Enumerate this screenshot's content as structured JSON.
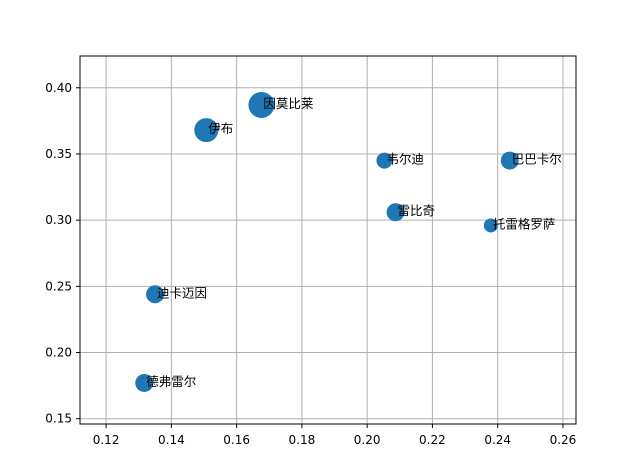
{
  "chart_data": {
    "type": "scatter",
    "title": "",
    "xlabel": "",
    "ylabel": "",
    "xlim": [
      0.112,
      0.264
    ],
    "ylim": [
      0.146,
      0.424
    ],
    "grid": true,
    "marker_color": "#1f77b4",
    "x_ticks": [
      "0.12",
      "0.14",
      "0.16",
      "0.18",
      "0.20",
      "0.22",
      "0.24",
      "0.26"
    ],
    "y_ticks": [
      "0.15",
      "0.20",
      "0.25",
      "0.30",
      "0.35",
      "0.40"
    ],
    "points": [
      {
        "label": "因莫比莱",
        "x": 0.1676,
        "y": 0.387,
        "size": 13
      },
      {
        "label": "伊布",
        "x": 0.1507,
        "y": 0.368,
        "size": 12
      },
      {
        "label": "韦尔迪",
        "x": 0.2053,
        "y": 0.345,
        "size": 8
      },
      {
        "label": "巴巴卡尔",
        "x": 0.2437,
        "y": 0.345,
        "size": 9
      },
      {
        "label": "雷比奇",
        "x": 0.2087,
        "y": 0.306,
        "size": 9
      },
      {
        "label": "托雷格罗萨",
        "x": 0.2379,
        "y": 0.296,
        "size": 7
      },
      {
        "label": "迪卡迈因",
        "x": 0.135,
        "y": 0.244,
        "size": 9
      },
      {
        "label": "德弗雷尔",
        "x": 0.1317,
        "y": 0.177,
        "size": 9
      }
    ]
  }
}
